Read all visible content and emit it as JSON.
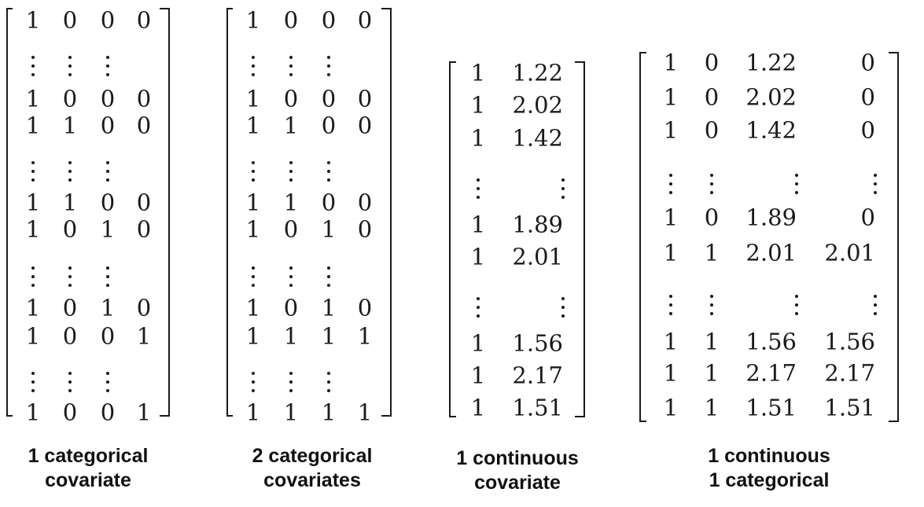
{
  "matrices": [
    {
      "id": "cat1",
      "rows": [
        [
          "1",
          "0",
          "0",
          "0"
        ],
        [
          "⋮",
          "⋮",
          "⋮",
          ""
        ],
        [
          "1",
          "0",
          "0",
          "0"
        ],
        [
          "1",
          "1",
          "0",
          "0"
        ],
        [
          "⋮",
          "⋮",
          "⋮",
          ""
        ],
        [
          "1",
          "1",
          "0",
          "0"
        ],
        [
          "1",
          "0",
          "1",
          "0"
        ],
        [
          "⋮",
          "⋮",
          "⋮",
          ""
        ],
        [
          "1",
          "0",
          "1",
          "0"
        ],
        [
          "1",
          "0",
          "0",
          "1"
        ],
        [
          "⋮",
          "⋮",
          "⋮",
          ""
        ],
        [
          "1",
          "0",
          "0",
          "1"
        ]
      ],
      "caption": [
        "1 categorical",
        "covariate"
      ]
    },
    {
      "id": "cat2",
      "rows": [
        [
          "1",
          "0",
          "0",
          "0"
        ],
        [
          "⋮",
          "⋮",
          "⋮",
          ""
        ],
        [
          "1",
          "0",
          "0",
          "0"
        ],
        [
          "1",
          "1",
          "0",
          "0"
        ],
        [
          "⋮",
          "⋮",
          "⋮",
          ""
        ],
        [
          "1",
          "1",
          "0",
          "0"
        ],
        [
          "1",
          "0",
          "1",
          "0"
        ],
        [
          "⋮",
          "⋮",
          "⋮",
          ""
        ],
        [
          "1",
          "0",
          "1",
          "0"
        ],
        [
          "1",
          "1",
          "1",
          "1"
        ],
        [
          "⋮",
          "⋮",
          "⋮",
          ""
        ],
        [
          "1",
          "1",
          "1",
          "1"
        ]
      ],
      "caption": [
        "2 categorical",
        "covariates"
      ]
    },
    {
      "id": "cont1",
      "rows": [
        [
          "1",
          "1.22"
        ],
        [
          "1",
          "2.02"
        ],
        [
          "1",
          "1.42"
        ],
        [
          "⋮",
          "⋮"
        ],
        [
          "1",
          "1.89"
        ],
        [
          "1",
          "2.01"
        ],
        [
          "⋮",
          "⋮"
        ],
        [
          "1",
          "1.56"
        ],
        [
          "1",
          "2.17"
        ],
        [
          "1",
          "1.51"
        ]
      ],
      "caption": [
        "1 continuous",
        "covariate"
      ]
    },
    {
      "id": "contcat",
      "rows": [
        [
          "1",
          "0",
          "1.22",
          "0"
        ],
        [
          "1",
          "0",
          "2.02",
          "0"
        ],
        [
          "1",
          "0",
          "1.42",
          "0"
        ],
        [
          "⋮",
          "⋮",
          "⋮",
          "⋮"
        ],
        [
          "1",
          "0",
          "1.89",
          "0"
        ],
        [
          "1",
          "1",
          "2.01",
          "2.01"
        ],
        [
          "⋮",
          "⋮",
          "⋮",
          "⋮"
        ],
        [
          "1",
          "1",
          "1.56",
          "1.56"
        ],
        [
          "1",
          "1",
          "2.17",
          "2.17"
        ],
        [
          "1",
          "1",
          "1.51",
          "1.51"
        ]
      ],
      "caption": [
        "1 continuous",
        "1 categorical"
      ]
    }
  ]
}
